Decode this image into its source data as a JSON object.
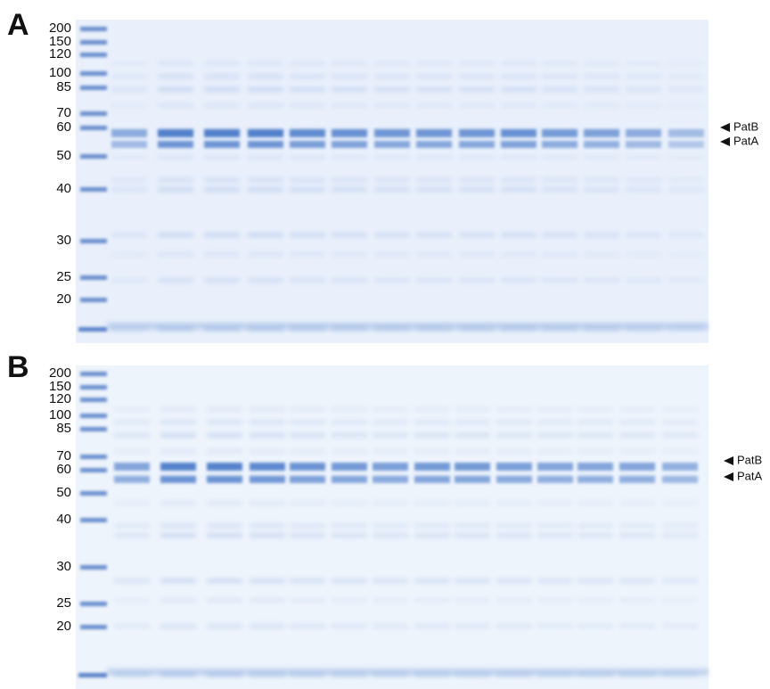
{
  "panels": [
    {
      "label": "A",
      "markers": [
        "200",
        "150",
        "120",
        "100",
        "85",
        "70",
        "60",
        "50",
        "40",
        "30",
        "25",
        "20"
      ],
      "bands": [
        "PatB",
        "PatA"
      ]
    },
    {
      "label": "B",
      "markers": [
        "200",
        "150",
        "120",
        "100",
        "85",
        "70",
        "60",
        "50",
        "40",
        "30",
        "25",
        "20"
      ],
      "bands": [
        "PatB",
        "PatA"
      ]
    }
  ]
}
